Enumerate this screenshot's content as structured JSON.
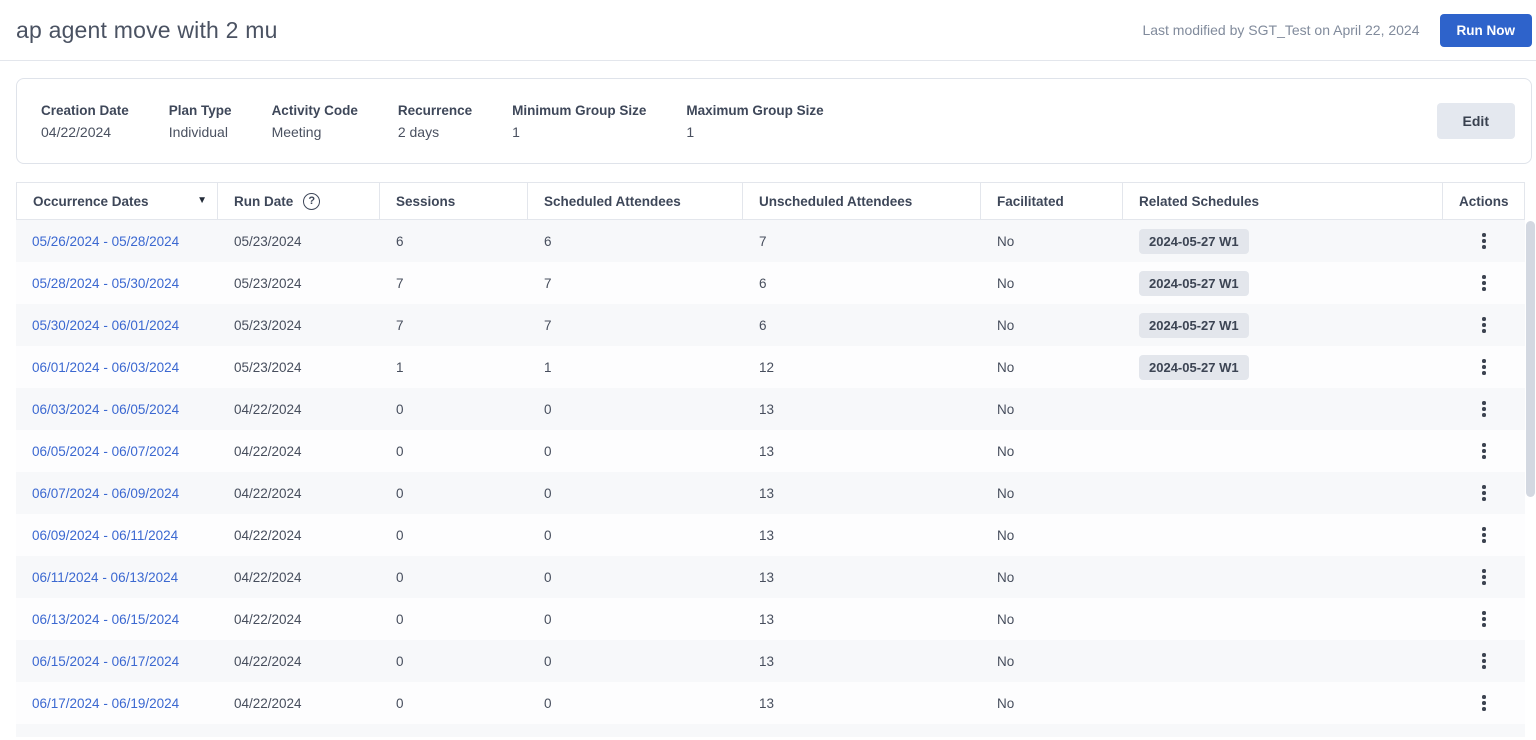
{
  "header": {
    "title": "ap agent move with 2 mu",
    "last_modified": "Last modified by SGT_Test on April 22, 2024",
    "run_now_label": "Run Now"
  },
  "summary": {
    "fields": [
      {
        "label": "Creation Date",
        "value": "04/22/2024"
      },
      {
        "label": "Plan Type",
        "value": "Individual"
      },
      {
        "label": "Activity Code",
        "value": "Meeting"
      },
      {
        "label": "Recurrence",
        "value": "2 days"
      },
      {
        "label": "Minimum Group Size",
        "value": "1"
      },
      {
        "label": "Maximum Group Size",
        "value": "1"
      }
    ],
    "edit_label": "Edit"
  },
  "icons": {
    "sort_desc": "▼",
    "help": "?"
  },
  "table": {
    "columns": [
      "Occurrence Dates",
      "Run Date",
      "Sessions",
      "Scheduled Attendees",
      "Unscheduled Attendees",
      "Facilitated",
      "Related Schedules",
      "Actions"
    ],
    "rows": [
      {
        "occurrence_dates": "05/26/2024 - 05/28/2024",
        "run_date": "05/23/2024",
        "sessions": "6",
        "scheduled": "6",
        "unscheduled": "7",
        "facilitated": "No",
        "related_schedule": "2024-05-27 W1"
      },
      {
        "occurrence_dates": "05/28/2024 - 05/30/2024",
        "run_date": "05/23/2024",
        "sessions": "7",
        "scheduled": "7",
        "unscheduled": "6",
        "facilitated": "No",
        "related_schedule": "2024-05-27 W1"
      },
      {
        "occurrence_dates": "05/30/2024 - 06/01/2024",
        "run_date": "05/23/2024",
        "sessions": "7",
        "scheduled": "7",
        "unscheduled": "6",
        "facilitated": "No",
        "related_schedule": "2024-05-27 W1"
      },
      {
        "occurrence_dates": "06/01/2024 - 06/03/2024",
        "run_date": "05/23/2024",
        "sessions": "1",
        "scheduled": "1",
        "unscheduled": "12",
        "facilitated": "No",
        "related_schedule": "2024-05-27 W1"
      },
      {
        "occurrence_dates": "06/03/2024 - 06/05/2024",
        "run_date": "04/22/2024",
        "sessions": "0",
        "scheduled": "0",
        "unscheduled": "13",
        "facilitated": "No",
        "related_schedule": ""
      },
      {
        "occurrence_dates": "06/05/2024 - 06/07/2024",
        "run_date": "04/22/2024",
        "sessions": "0",
        "scheduled": "0",
        "unscheduled": "13",
        "facilitated": "No",
        "related_schedule": ""
      },
      {
        "occurrence_dates": "06/07/2024 - 06/09/2024",
        "run_date": "04/22/2024",
        "sessions": "0",
        "scheduled": "0",
        "unscheduled": "13",
        "facilitated": "No",
        "related_schedule": ""
      },
      {
        "occurrence_dates": "06/09/2024 - 06/11/2024",
        "run_date": "04/22/2024",
        "sessions": "0",
        "scheduled": "0",
        "unscheduled": "13",
        "facilitated": "No",
        "related_schedule": ""
      },
      {
        "occurrence_dates": "06/11/2024 - 06/13/2024",
        "run_date": "04/22/2024",
        "sessions": "0",
        "scheduled": "0",
        "unscheduled": "13",
        "facilitated": "No",
        "related_schedule": ""
      },
      {
        "occurrence_dates": "06/13/2024 - 06/15/2024",
        "run_date": "04/22/2024",
        "sessions": "0",
        "scheduled": "0",
        "unscheduled": "13",
        "facilitated": "No",
        "related_schedule": ""
      },
      {
        "occurrence_dates": "06/15/2024 - 06/17/2024",
        "run_date": "04/22/2024",
        "sessions": "0",
        "scheduled": "0",
        "unscheduled": "13",
        "facilitated": "No",
        "related_schedule": ""
      },
      {
        "occurrence_dates": "06/17/2024 - 06/19/2024",
        "run_date": "04/22/2024",
        "sessions": "0",
        "scheduled": "0",
        "unscheduled": "13",
        "facilitated": "No",
        "related_schedule": ""
      }
    ]
  },
  "colors": {
    "accent_blue": "#2e63cb",
    "link_blue": "#3b68d1",
    "badge_bg": "#e3e6ec",
    "row_alt": "#f7f8fa",
    "border": "#e3e6ec"
  }
}
